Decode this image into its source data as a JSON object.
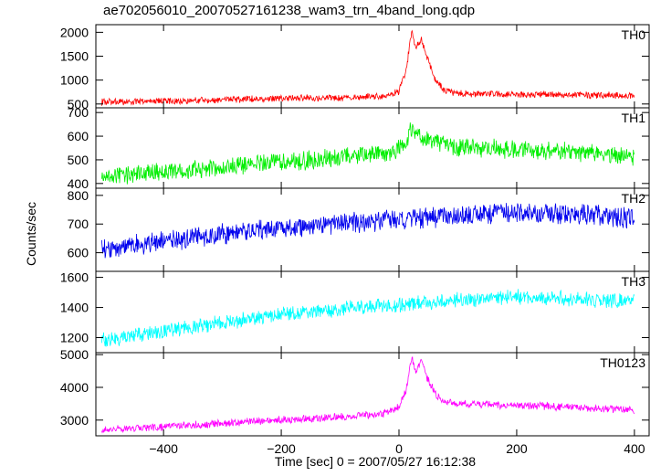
{
  "chart_data": {
    "type": "line",
    "title": "ae702056010_20070527161238_wam3_trn_4band_long.qdp",
    "xlabel": "Time [sec] 0 = 2007/05/27 16:12:38",
    "ylabel": "Counts/sec",
    "xlim": [
      -515,
      425
    ],
    "x_ticks": [
      -400,
      -200,
      0,
      200,
      400
    ],
    "x_tick_labels": [
      "−400",
      "−200",
      "0",
      "200",
      "400"
    ],
    "grid": false,
    "panels": [
      {
        "name": "TH0",
        "color": "#ff0000",
        "ylim": [
          420,
          2160
        ],
        "y_ticks": [
          500,
          1000,
          1500,
          2000
        ],
        "series": [
          {
            "x": -505,
            "y": 540
          },
          {
            "x": -400,
            "y": 560
          },
          {
            "x": -300,
            "y": 590
          },
          {
            "x": -200,
            "y": 620
          },
          {
            "x": -100,
            "y": 630
          },
          {
            "x": -30,
            "y": 650
          },
          {
            "x": 0,
            "y": 760
          },
          {
            "x": 12,
            "y": 1200
          },
          {
            "x": 22,
            "y": 2050
          },
          {
            "x": 28,
            "y": 1650
          },
          {
            "x": 38,
            "y": 1850
          },
          {
            "x": 50,
            "y": 1400
          },
          {
            "x": 62,
            "y": 1000
          },
          {
            "x": 75,
            "y": 800
          },
          {
            "x": 100,
            "y": 720
          },
          {
            "x": 200,
            "y": 700
          },
          {
            "x": 300,
            "y": 690
          },
          {
            "x": 400,
            "y": 670
          }
        ]
      },
      {
        "name": "TH1",
        "color": "#00ee00",
        "ylim": [
          380,
          720
        ],
        "y_ticks": [
          400,
          500,
          600,
          700
        ],
        "series": [
          {
            "x": -505,
            "y": 430
          },
          {
            "x": -400,
            "y": 450
          },
          {
            "x": -300,
            "y": 470
          },
          {
            "x": -200,
            "y": 490
          },
          {
            "x": -100,
            "y": 510
          },
          {
            "x": -20,
            "y": 525
          },
          {
            "x": 10,
            "y": 560
          },
          {
            "x": 20,
            "y": 630
          },
          {
            "x": 35,
            "y": 600
          },
          {
            "x": 60,
            "y": 570
          },
          {
            "x": 100,
            "y": 550
          },
          {
            "x": 200,
            "y": 545
          },
          {
            "x": 300,
            "y": 535
          },
          {
            "x": 400,
            "y": 510
          }
        ]
      },
      {
        "name": "TH2",
        "color": "#0000ee",
        "ylim": [
          535,
          825
        ],
        "y_ticks": [
          600,
          700,
          800
        ],
        "series": [
          {
            "x": -505,
            "y": 610
          },
          {
            "x": -400,
            "y": 640
          },
          {
            "x": -300,
            "y": 665
          },
          {
            "x": -200,
            "y": 685
          },
          {
            "x": -100,
            "y": 700
          },
          {
            "x": 0,
            "y": 715
          },
          {
            "x": 100,
            "y": 730
          },
          {
            "x": 200,
            "y": 740
          },
          {
            "x": 300,
            "y": 735
          },
          {
            "x": 400,
            "y": 720
          }
        ]
      },
      {
        "name": "TH3",
        "color": "#00ffff",
        "ylim": [
          1100,
          1640
        ],
        "y_ticks": [
          1200,
          1400,
          1600
        ],
        "series": [
          {
            "x": -505,
            "y": 1180
          },
          {
            "x": -400,
            "y": 1240
          },
          {
            "x": -300,
            "y": 1300
          },
          {
            "x": -200,
            "y": 1350
          },
          {
            "x": -100,
            "y": 1390
          },
          {
            "x": 0,
            "y": 1420
          },
          {
            "x": 100,
            "y": 1450
          },
          {
            "x": 200,
            "y": 1470
          },
          {
            "x": 300,
            "y": 1460
          },
          {
            "x": 400,
            "y": 1440
          }
        ]
      },
      {
        "name": "TH0123",
        "color": "#ff00ff",
        "ylim": [
          2520,
          5060
        ],
        "y_ticks": [
          3000,
          4000,
          5000
        ],
        "series": [
          {
            "x": -505,
            "y": 2720
          },
          {
            "x": -400,
            "y": 2800
          },
          {
            "x": -300,
            "y": 2900
          },
          {
            "x": -200,
            "y": 3000
          },
          {
            "x": -100,
            "y": 3100
          },
          {
            "x": -30,
            "y": 3180
          },
          {
            "x": 0,
            "y": 3400
          },
          {
            "x": 12,
            "y": 3900
          },
          {
            "x": 22,
            "y": 4950
          },
          {
            "x": 28,
            "y": 4450
          },
          {
            "x": 38,
            "y": 4800
          },
          {
            "x": 50,
            "y": 4200
          },
          {
            "x": 65,
            "y": 3700
          },
          {
            "x": 80,
            "y": 3550
          },
          {
            "x": 100,
            "y": 3500
          },
          {
            "x": 200,
            "y": 3450
          },
          {
            "x": 300,
            "y": 3400
          },
          {
            "x": 400,
            "y": 3300
          }
        ]
      }
    ]
  }
}
